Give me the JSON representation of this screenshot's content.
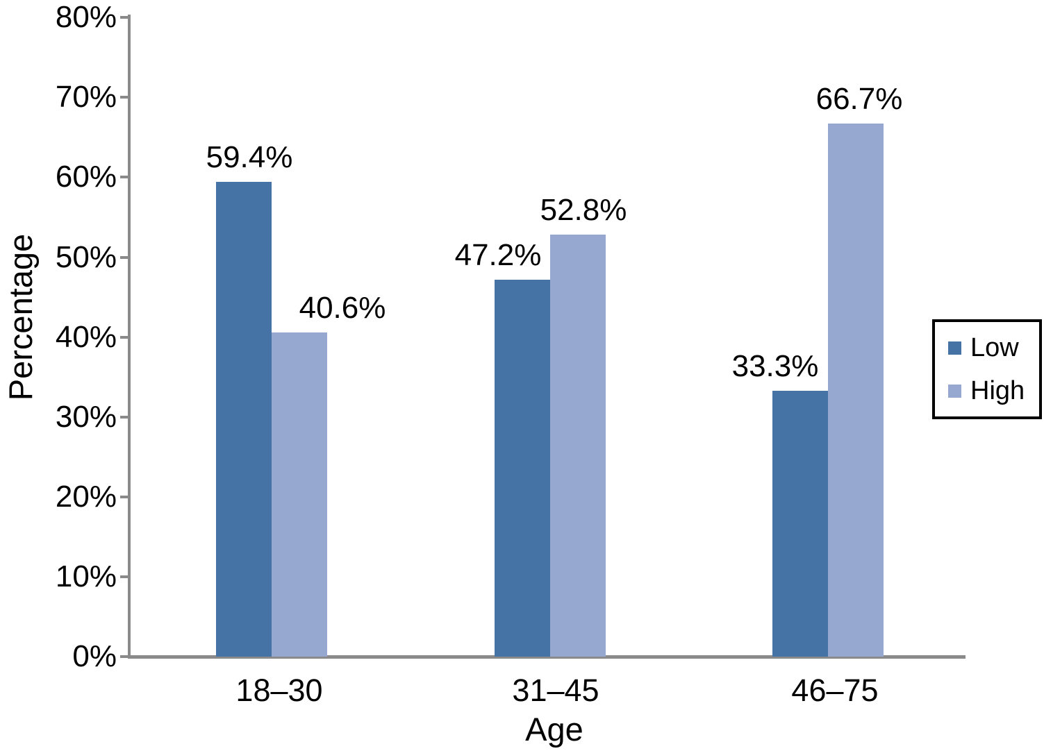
{
  "chart_data": {
    "type": "bar",
    "title": "",
    "xlabel": "Age",
    "ylabel": "Percentage",
    "categories": [
      "18–30",
      "31–45",
      "46–75"
    ],
    "series": [
      {
        "name": "Low",
        "color": "#4673a5",
        "values": [
          59.4,
          47.2,
          33.3
        ],
        "labels": [
          "59.4%",
          "47.2%",
          "33.3%"
        ]
      },
      {
        "name": "High",
        "color": "#96a8cf",
        "values": [
          40.6,
          52.8,
          66.7
        ],
        "labels": [
          "40.6%",
          "52.8%",
          "66.7%"
        ]
      }
    ],
    "ylim": [
      0,
      80
    ],
    "yticks": [
      {
        "value": 0,
        "label": "0%"
      },
      {
        "value": 10,
        "label": "10%"
      },
      {
        "value": 20,
        "label": "20%"
      },
      {
        "value": 30,
        "label": "30%"
      },
      {
        "value": 40,
        "label": "40%"
      },
      {
        "value": 50,
        "label": "50%"
      },
      {
        "value": 60,
        "label": "60%"
      },
      {
        "value": 70,
        "label": "70%"
      },
      {
        "value": 80,
        "label": "80%"
      }
    ],
    "grid": false,
    "legend_position": "right",
    "axis_color": "#8a8a8a",
    "text_color": "#000000"
  }
}
